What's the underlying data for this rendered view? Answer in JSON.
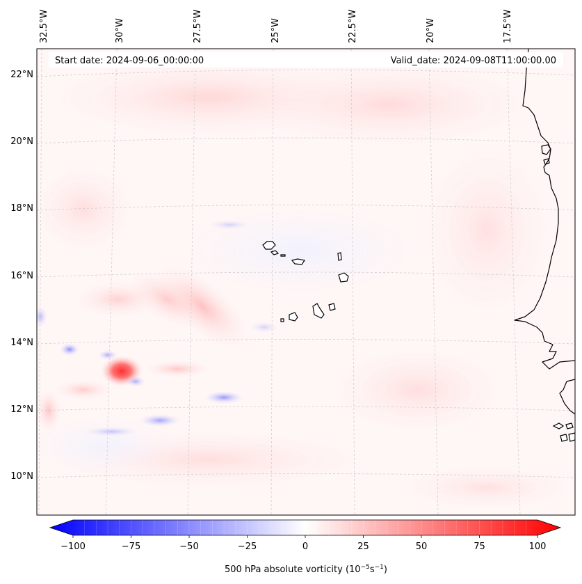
{
  "header": {
    "start_date": "Start date: 2024-09-06_00:00:00",
    "valid_date": "Valid_date: 2024-09-08T11:00:00.00"
  },
  "map": {
    "lon_labels": [
      "32.5°W",
      "30°W",
      "27.5°W",
      "25°W",
      "22.5°W",
      "20°W",
      "17.5°W"
    ],
    "lat_labels": [
      "22°N",
      "20°N",
      "18°N",
      "16°N",
      "14°N",
      "12°N",
      "10°N"
    ]
  },
  "colorbar": {
    "ticks": [
      "−100",
      "−75",
      "−50",
      "−25",
      "0",
      "25",
      "50",
      "75",
      "100"
    ],
    "label": "500 hPa absolute vorticity (10",
    "label_exp1": "−5",
    "label_mid": "s",
    "label_exp2": "−1",
    "label_end": ")",
    "min_color": "#0000ff",
    "mid_color": "#ffffff",
    "max_color": "#ff0000"
  }
}
